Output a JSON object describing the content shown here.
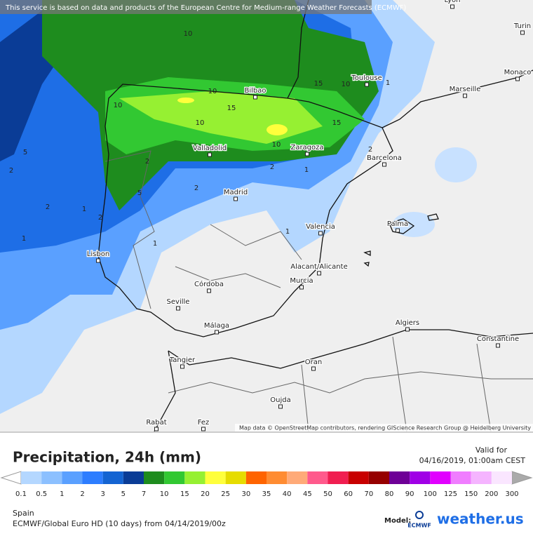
{
  "header": {
    "notice": "This service is based on data and products of the European Centre for Medium-range Weather Forecasts (ECMWF)"
  },
  "map": {
    "cities": [
      "Lyon",
      "Turin",
      "Monaco",
      "Marseille",
      "Toulouse",
      "Bilbao",
      "Zaragoza",
      "Barcelona",
      "Valladolid",
      "Madrid",
      "Palma",
      "Valencia",
      "Lisbon",
      "Alacant/Alicante",
      "Murcia",
      "Córdoba",
      "Seville",
      "Málaga",
      "Algiers",
      "Constantine",
      "Tangier",
      "Oran",
      "Oujda",
      "Rabat",
      "Fez"
    ],
    "contour_labels": [
      10,
      10,
      10,
      10,
      10,
      10,
      15,
      15,
      15,
      2,
      2,
      2,
      2,
      2,
      2,
      2,
      1,
      1,
      1,
      1,
      1,
      1,
      5,
      5
    ],
    "attribution": "Map data © OpenStreetMap contributors, rendering GIScience Research Group @ Heidelberg University"
  },
  "legend": {
    "title": "Precipitation, 24h (mm)",
    "valid_label": "Valid for",
    "valid_time": "04/16/2019, 01:00am CEST",
    "ticks": [
      0.1,
      0.5,
      1,
      2,
      3,
      5,
      7,
      10,
      15,
      20,
      25,
      30,
      35,
      40,
      45,
      50,
      60,
      70,
      80,
      90,
      100,
      125,
      150,
      200,
      300
    ],
    "colors": [
      "#b4d7ff",
      "#8cc0ff",
      "#5aa0ff",
      "#2d7dff",
      "#1464d2",
      "#0a3c96",
      "#1e8c1e",
      "#32c832",
      "#96f032",
      "#ffff3c",
      "#e6dc00",
      "#ff6400",
      "#ff8c32",
      "#ffaa78",
      "#ff5a8c",
      "#f01e50",
      "#c80000",
      "#960000",
      "#6e0096",
      "#a000e6",
      "#e100ff",
      "#f07dff",
      "#f5b4ff",
      "#fae6ff"
    ]
  },
  "footer": {
    "region": "Spain",
    "model_run": "ECMWF/Global Euro HD (10 days) from 04/14/2019/00z",
    "model_label": "Model:",
    "logo_ecmwf": "ECMWF",
    "logo_site": "weather.us"
  }
}
